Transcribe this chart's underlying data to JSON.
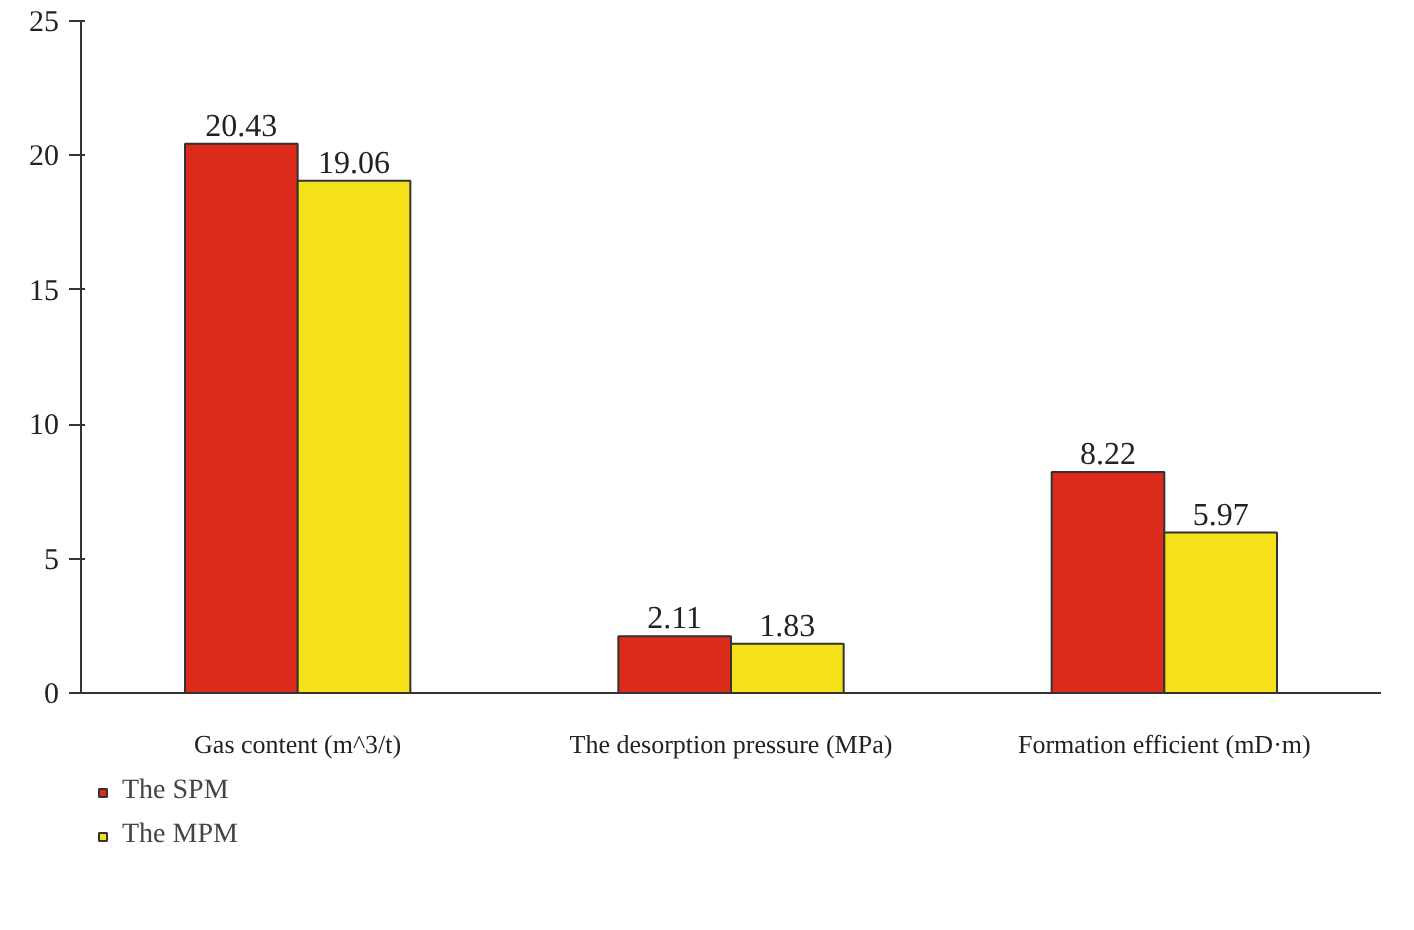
{
  "chart_data": {
    "type": "bar",
    "categories": [
      "Gas content (m^3/t)",
      "The desorption pressure (MPa)",
      "Formation efficient (mD·m)"
    ],
    "series": [
      {
        "name": "The SPM",
        "color": "#dc2a1b",
        "values": [
          20.43,
          2.11,
          8.22
        ]
      },
      {
        "name": "The MPM",
        "color": "#f4e11a",
        "values": [
          19.06,
          1.83,
          5.97
        ]
      }
    ],
    "ylim": [
      0,
      25
    ],
    "yticks": [
      0,
      5,
      10,
      15,
      20,
      25
    ],
    "grid": false,
    "legend": "bottom left",
    "data_labels": true
  }
}
